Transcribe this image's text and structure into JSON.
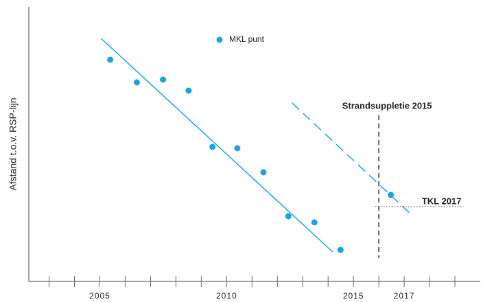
{
  "chart_data": {
    "type": "scatter",
    "y_label": "Afstand t.o.v. RSP-lijn",
    "legend": "top",
    "xlim": [
      2002.2,
      2020
    ],
    "ylim": [
      0,
      100
    ],
    "xticks": [
      2005,
      2010,
      2015,
      2017
    ],
    "xminor_ticks": [
      2003,
      2004,
      2006,
      2007,
      2008,
      2009,
      2011,
      2012,
      2013,
      2014,
      2016,
      2018,
      2019
    ],
    "series": [
      {
        "name": "MKL punt",
        "color": "#1ba3df",
        "x": [
          2005.41,
          2006.46,
          2007.49,
          2008.5,
          2009.44,
          2010.42,
          2011.45,
          2012.43,
          2013.46,
          2014.49,
          2016.47
        ],
        "values": [
          80.75,
          72.5,
          73.5,
          69.5,
          49,
          48.5,
          39.75,
          23.75,
          21.5,
          11.5,
          31.5
        ]
      }
    ],
    "trendlines": [
      {
        "color": "#1ba3df",
        "dashed": false,
        "x": [
          2005.05,
          2014.18
        ],
        "values": [
          88.5,
          10.75
        ]
      },
      {
        "color": "#1ba3df",
        "dashed": true,
        "x": [
          2012.58,
          2017.29
        ],
        "values": [
          65,
          24.25
        ]
      }
    ],
    "vlines": [
      {
        "label": "Strandsuppletie 2015",
        "x": 2016
      }
    ],
    "hlines": [
      {
        "label": "TKL 2017",
        "y": 27.25,
        "x_range": [
          2015.87,
          2019.34
        ]
      }
    ]
  }
}
